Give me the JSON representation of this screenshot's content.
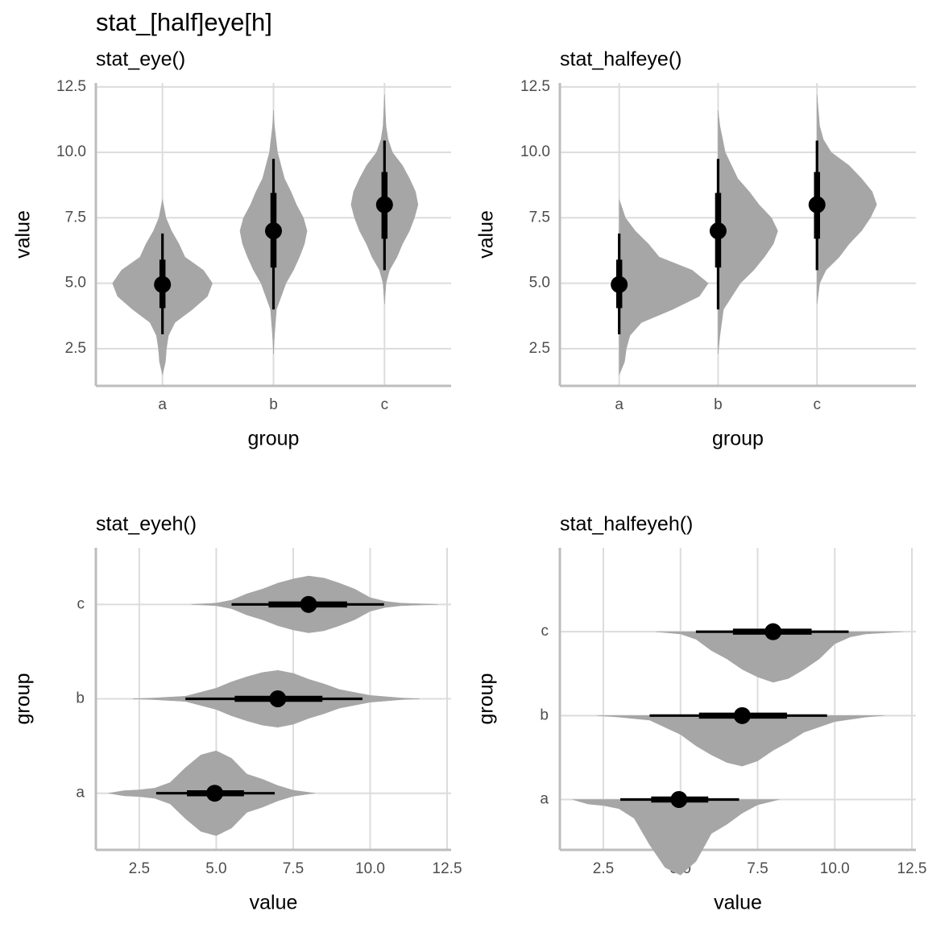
{
  "title": "stat_[half]eye[h]",
  "chart_data": [
    {
      "type": "eye",
      "orientation": "vertical",
      "title": "stat_eye()",
      "x_label": "group",
      "y_label": "value",
      "categories": [
        "a",
        "b",
        "c"
      ],
      "color": "#a6a6a6",
      "interval_color": "#000000",
      "ylim": [
        1.08,
        12.65
      ],
      "yticks": [
        2.5,
        {
          "value": 5,
          "label": "5.0"
        },
        7.5,
        {
          "value": 10,
          "label": "10.0"
        },
        12.5
      ],
      "grid": true,
      "intervals": [
        {
          "point": 4.95,
          "thick": [
            4.05,
            5.9
          ],
          "thin": [
            3.05,
            6.9
          ]
        },
        {
          "point": 7.0,
          "thick": [
            5.6,
            8.45
          ],
          "thin": [
            4.0,
            9.75
          ]
        },
        {
          "point": 8.0,
          "thick": [
            6.7,
            9.25
          ],
          "thin": [
            5.5,
            10.45
          ]
        }
      ],
      "densities": [
        {
          "x": [
            1.5,
            2.0,
            2.5,
            3.0,
            3.5,
            4.0,
            4.5,
            5.0,
            5.5,
            6.0,
            6.5,
            7.0,
            7.5,
            8.0,
            8.2
          ],
          "y": [
            0,
            0.06,
            0.08,
            0.12,
            0.25,
            0.6,
            0.9,
            1.0,
            0.82,
            0.45,
            0.33,
            0.18,
            0.07,
            0.02,
            0
          ]
        },
        {
          "x": [
            2.3,
            3.0,
            4.0,
            5.0,
            5.5,
            6.0,
            6.5,
            7.0,
            7.5,
            8.0,
            8.5,
            9.0,
            10.0,
            11.0,
            11.6
          ],
          "y": [
            0,
            0.02,
            0.06,
            0.25,
            0.4,
            0.52,
            0.62,
            0.67,
            0.6,
            0.46,
            0.35,
            0.22,
            0.08,
            0.02,
            0
          ]
        },
        {
          "x": [
            4.2,
            5.0,
            5.5,
            6.0,
            6.5,
            7.0,
            7.5,
            8.0,
            8.5,
            9.0,
            9.5,
            10.0,
            10.5,
            11.0,
            12.2
          ],
          "y": [
            0,
            0.03,
            0.1,
            0.25,
            0.36,
            0.5,
            0.6,
            0.67,
            0.62,
            0.5,
            0.36,
            0.16,
            0.07,
            0.03,
            0
          ]
        }
      ]
    },
    {
      "type": "halfeye",
      "orientation": "vertical",
      "title": "stat_halfeye()",
      "x_label": "group",
      "y_label": "value",
      "categories": [
        "a",
        "b",
        "c"
      ],
      "color": "#a6a6a6",
      "interval_color": "#000000",
      "ylim": [
        1.08,
        12.65
      ],
      "yticks": [
        2.5,
        {
          "value": 5,
          "label": "5.0"
        },
        7.5,
        {
          "value": 10,
          "label": "10.0"
        },
        12.5
      ],
      "grid": true,
      "intervals": [
        {
          "point": 4.95,
          "thick": [
            4.05,
            5.9
          ],
          "thin": [
            3.05,
            6.9
          ]
        },
        {
          "point": 7.0,
          "thick": [
            5.6,
            8.45
          ],
          "thin": [
            4.0,
            9.75
          ]
        },
        {
          "point": 8.0,
          "thick": [
            6.7,
            9.25
          ],
          "thin": [
            5.5,
            10.45
          ]
        }
      ],
      "densities": [
        {
          "x": [
            1.5,
            2.0,
            2.5,
            3.0,
            3.5,
            4.0,
            4.5,
            5.0,
            5.5,
            6.0,
            6.5,
            7.0,
            7.5,
            8.0,
            8.2
          ],
          "y": [
            0,
            0.06,
            0.08,
            0.12,
            0.25,
            0.6,
            0.9,
            1.0,
            0.82,
            0.45,
            0.33,
            0.18,
            0.07,
            0.02,
            0
          ]
        },
        {
          "x": [
            2.3,
            3.0,
            4.0,
            5.0,
            5.5,
            6.0,
            6.5,
            7.0,
            7.5,
            8.0,
            8.5,
            9.0,
            10.0,
            11.0,
            11.6
          ],
          "y": [
            0,
            0.02,
            0.06,
            0.25,
            0.4,
            0.52,
            0.62,
            0.67,
            0.6,
            0.46,
            0.35,
            0.22,
            0.08,
            0.02,
            0
          ]
        },
        {
          "x": [
            4.2,
            5.0,
            5.5,
            6.0,
            6.5,
            7.0,
            7.5,
            8.0,
            8.5,
            9.0,
            9.5,
            10.0,
            10.5,
            11.0,
            12.2
          ],
          "y": [
            0,
            0.03,
            0.1,
            0.25,
            0.36,
            0.5,
            0.6,
            0.67,
            0.62,
            0.5,
            0.36,
            0.16,
            0.07,
            0.03,
            0
          ]
        }
      ]
    },
    {
      "type": "eye",
      "orientation": "horizontal",
      "title": "stat_eyeh()",
      "x_label": "value",
      "y_label": "group",
      "categories": [
        "a",
        "b",
        "c"
      ],
      "color": "#a6a6a6",
      "interval_color": "#000000",
      "xlim": [
        1.09,
        12.63
      ],
      "xticks": [
        2.5,
        {
          "value": 5,
          "label": "5.0"
        },
        7.5,
        {
          "value": 10,
          "label": "10.0"
        },
        12.5
      ],
      "grid": true,
      "intervals": [
        {
          "point": 4.95,
          "thick": [
            4.05,
            5.9
          ],
          "thin": [
            3.05,
            6.9
          ]
        },
        {
          "point": 7.0,
          "thick": [
            5.6,
            8.45
          ],
          "thin": [
            4.0,
            9.75
          ]
        },
        {
          "point": 8.0,
          "thick": [
            6.7,
            9.25
          ],
          "thin": [
            5.5,
            10.45
          ]
        }
      ],
      "densities": [
        {
          "x": [
            1.5,
            2.0,
            2.5,
            3.0,
            3.5,
            4.0,
            4.5,
            5.0,
            5.5,
            6.0,
            6.5,
            7.0,
            7.5,
            8.0,
            8.2
          ],
          "y": [
            0,
            0.06,
            0.08,
            0.12,
            0.25,
            0.6,
            0.9,
            1.0,
            0.82,
            0.45,
            0.33,
            0.18,
            0.07,
            0.02,
            0
          ]
        },
        {
          "x": [
            2.3,
            3.0,
            4.0,
            5.0,
            5.5,
            6.0,
            6.5,
            7.0,
            7.5,
            8.0,
            8.5,
            9.0,
            10.0,
            11.0,
            11.6
          ],
          "y": [
            0,
            0.02,
            0.06,
            0.25,
            0.4,
            0.52,
            0.62,
            0.67,
            0.6,
            0.46,
            0.35,
            0.22,
            0.08,
            0.02,
            0
          ]
        },
        {
          "x": [
            4.2,
            5.0,
            5.5,
            6.0,
            6.5,
            7.0,
            7.5,
            8.0,
            8.5,
            9.0,
            9.5,
            10.0,
            10.5,
            11.0,
            12.2
          ],
          "y": [
            0,
            0.03,
            0.1,
            0.25,
            0.36,
            0.5,
            0.6,
            0.67,
            0.62,
            0.5,
            0.36,
            0.16,
            0.07,
            0.03,
            0
          ]
        }
      ]
    },
    {
      "type": "halfeye",
      "orientation": "horizontal",
      "title": "stat_halfeyeh()",
      "x_label": "value",
      "y_label": "group",
      "categories": [
        "a",
        "b",
        "c"
      ],
      "color": "#a6a6a6",
      "interval_color": "#000000",
      "xlim": [
        1.09,
        12.63
      ],
      "xticks": [
        2.5,
        {
          "value": 5,
          "label": "5.0"
        },
        7.5,
        {
          "value": 10,
          "label": "10.0"
        },
        12.5
      ],
      "grid": true,
      "intervals": [
        {
          "point": 4.95,
          "thick": [
            4.05,
            5.9
          ],
          "thin": [
            3.05,
            6.9
          ]
        },
        {
          "point": 7.0,
          "thick": [
            5.6,
            8.45
          ],
          "thin": [
            4.0,
            9.75
          ]
        },
        {
          "point": 8.0,
          "thick": [
            6.7,
            9.25
          ],
          "thin": [
            5.5,
            10.45
          ]
        }
      ],
      "densities": [
        {
          "x": [
            1.5,
            2.0,
            2.5,
            3.0,
            3.5,
            4.0,
            4.5,
            5.0,
            5.5,
            6.0,
            6.5,
            7.0,
            7.5,
            8.0,
            8.2
          ],
          "y": [
            0,
            0.06,
            0.08,
            0.12,
            0.25,
            0.6,
            0.9,
            1.0,
            0.82,
            0.45,
            0.33,
            0.18,
            0.07,
            0.02,
            0
          ]
        },
        {
          "x": [
            2.3,
            3.0,
            4.0,
            5.0,
            5.5,
            6.0,
            6.5,
            7.0,
            7.5,
            8.0,
            8.5,
            9.0,
            10.0,
            11.0,
            11.6
          ],
          "y": [
            0,
            0.02,
            0.06,
            0.25,
            0.4,
            0.52,
            0.62,
            0.67,
            0.6,
            0.46,
            0.35,
            0.22,
            0.08,
            0.02,
            0
          ]
        },
        {
          "x": [
            4.2,
            5.0,
            5.5,
            6.0,
            6.5,
            7.0,
            7.5,
            8.0,
            8.5,
            9.0,
            9.5,
            10.0,
            10.5,
            11.0,
            12.2
          ],
          "y": [
            0,
            0.03,
            0.1,
            0.25,
            0.36,
            0.5,
            0.6,
            0.67,
            0.62,
            0.5,
            0.36,
            0.16,
            0.07,
            0.03,
            0
          ]
        }
      ]
    }
  ]
}
